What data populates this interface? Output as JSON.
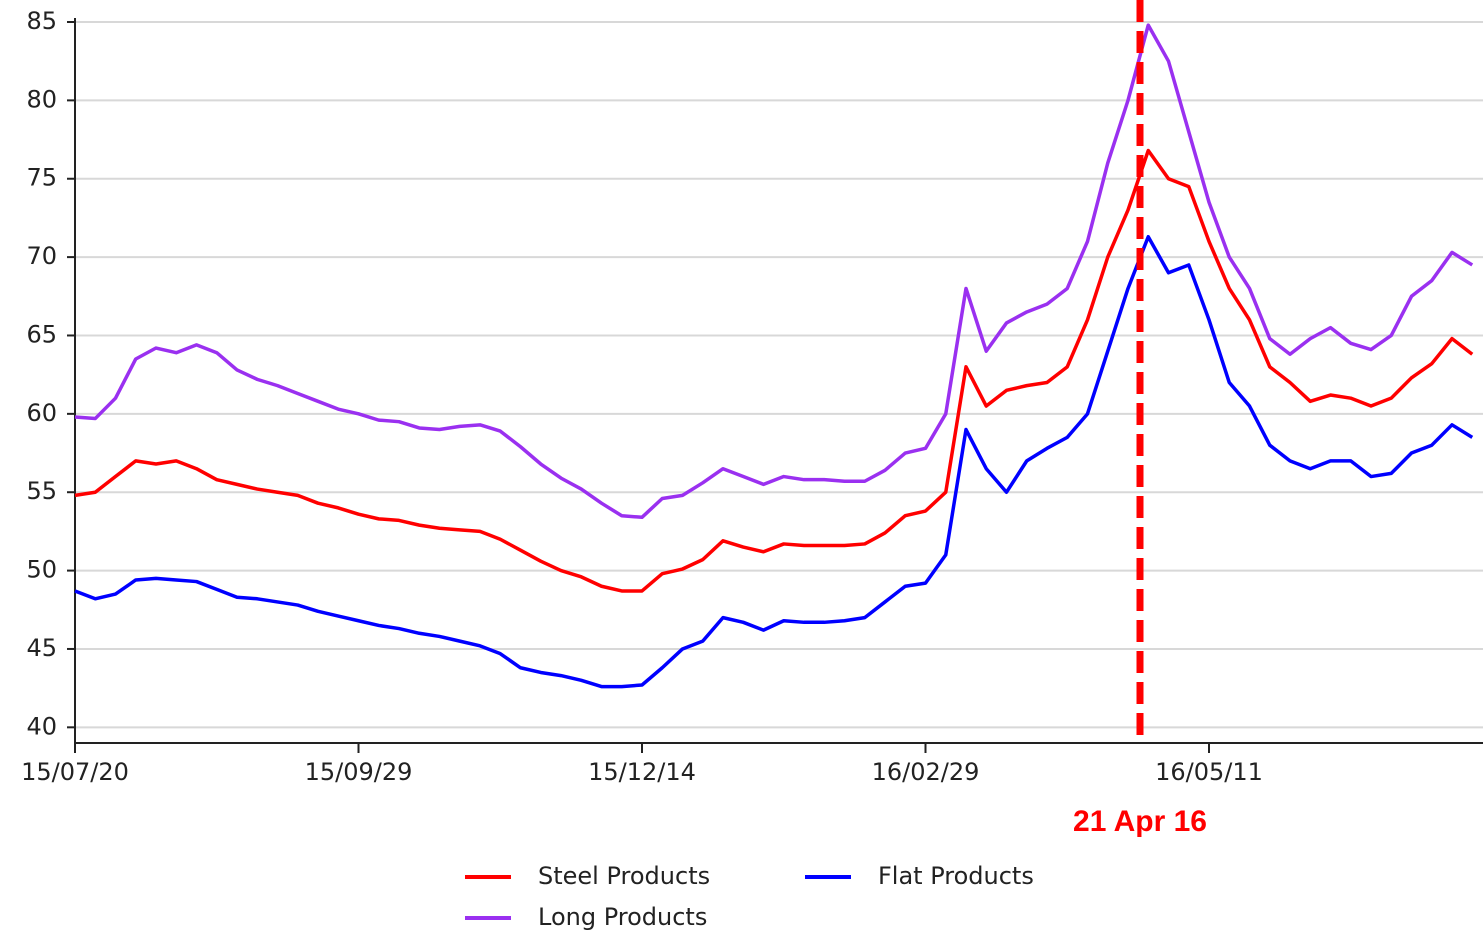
{
  "chart_data": {
    "type": "line",
    "categories": [
      "15/07/20",
      null,
      null,
      null,
      null,
      null,
      null,
      null,
      null,
      null,
      null,
      null,
      null,
      null,
      "15/09/29",
      null,
      null,
      null,
      null,
      null,
      null,
      null,
      null,
      null,
      null,
      null,
      null,
      null,
      "15/12/14",
      null,
      null,
      null,
      null,
      null,
      null,
      null,
      null,
      null,
      null,
      null,
      null,
      null,
      "16/02/29",
      null,
      null,
      null,
      null,
      null,
      null,
      null,
      null,
      null,
      null,
      null,
      null,
      null,
      "16/05/11",
      null,
      null,
      null,
      null,
      null,
      null,
      null,
      null,
      null,
      null,
      null,
      null,
      null
    ],
    "series": [
      {
        "name": "Steel Products",
        "color": "#ff0000",
        "values": [
          54.8,
          55,
          56,
          57,
          56.8,
          57,
          56.5,
          55.8,
          55.5,
          55.2,
          55,
          54.8,
          54.3,
          54,
          53.6,
          53.3,
          53.2,
          52.9,
          52.7,
          52.6,
          52.5,
          52,
          51.3,
          50.6,
          50,
          49.6,
          49,
          48.7,
          48.7,
          49.8,
          50.1,
          50.7,
          51.9,
          51.5,
          51.2,
          51.7,
          51.6,
          51.6,
          51.6,
          51.7,
          52.4,
          53.5,
          53.8,
          55,
          63,
          60.5,
          61.5,
          61.8,
          62,
          63,
          66,
          70,
          73,
          76.8,
          75,
          74.5,
          71,
          68,
          66,
          63,
          62,
          60.8,
          61.2,
          61,
          60.5,
          61,
          62.3,
          63.2,
          64.8,
          63.8
        ]
      },
      {
        "name": "Long Products",
        "color": "#9a30f0",
        "values": [
          59.8,
          59.7,
          61,
          63.5,
          64.2,
          63.9,
          64.4,
          63.9,
          62.8,
          62.2,
          61.8,
          61.3,
          60.8,
          60.3,
          60,
          59.6,
          59.5,
          59.1,
          59,
          59.2,
          59.3,
          58.9,
          57.9,
          56.8,
          55.9,
          55.2,
          54.3,
          53.5,
          53.4,
          54.6,
          54.8,
          55.6,
          56.5,
          56,
          55.5,
          56,
          55.8,
          55.8,
          55.7,
          55.7,
          56.4,
          57.5,
          57.8,
          60,
          68,
          64,
          65.8,
          66.5,
          67,
          68,
          71,
          76,
          80,
          84.8,
          82.5,
          78,
          73.5,
          70,
          68,
          64.8,
          63.8,
          64.8,
          65.5,
          64.5,
          64.1,
          65,
          67.5,
          68.5,
          70.3,
          69.5
        ]
      },
      {
        "name": "Flat Products",
        "color": "#0000ff",
        "values": [
          48.7,
          48.2,
          48.5,
          49.4,
          49.5,
          49.4,
          49.3,
          48.8,
          48.3,
          48.2,
          48,
          47.8,
          47.4,
          47.1,
          46.8,
          46.5,
          46.3,
          46,
          45.8,
          45.5,
          45.2,
          44.7,
          43.8,
          43.5,
          43.3,
          43,
          42.6,
          42.6,
          42.7,
          43.8,
          45,
          45.5,
          47,
          46.7,
          46.2,
          46.8,
          46.7,
          46.7,
          46.8,
          47,
          48,
          49,
          49.2,
          51,
          59,
          56.5,
          55,
          57,
          57.8,
          58.5,
          60,
          64,
          68,
          71.3,
          69,
          69.5,
          66,
          62,
          60.5,
          58,
          57,
          56.5,
          57,
          57,
          56,
          56.2,
          57.5,
          58,
          59.3,
          58.5
        ]
      }
    ],
    "ylim": [
      39,
      85
    ],
    "yticks": [
      40,
      45,
      50,
      55,
      60,
      65,
      70,
      75,
      80,
      85
    ],
    "grid": true,
    "annotation": "21 Apr 16",
    "annotation_color": "#ff0000"
  }
}
